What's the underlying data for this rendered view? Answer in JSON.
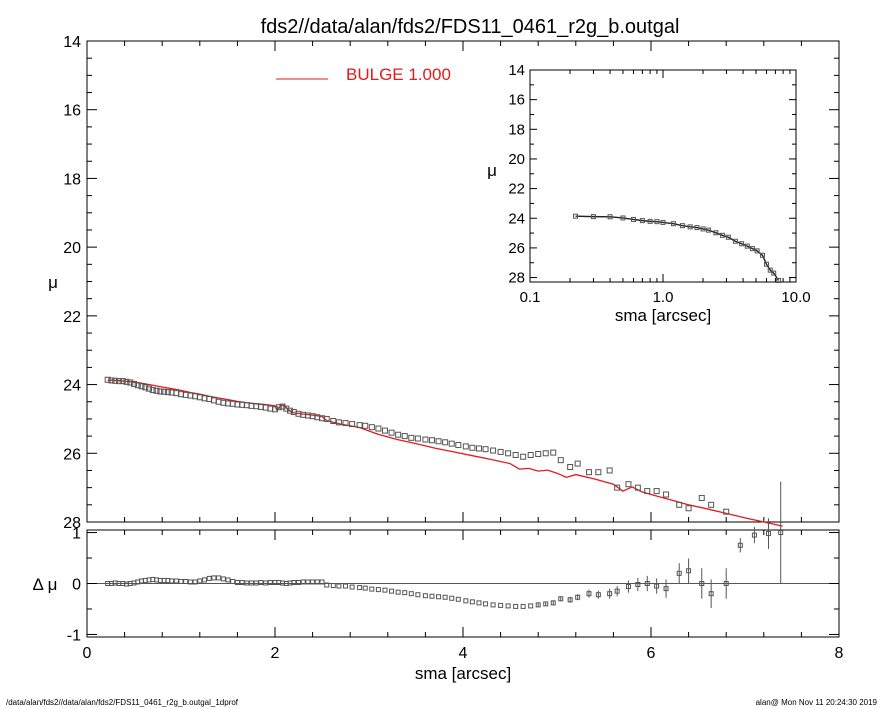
{
  "figure": {
    "title": "fds2//data/alan/fds2/FDS11_0461_r2g_b.outgal",
    "footer_left": "/data/alan/fds2//data/alan/fds2/FDS11_0461_r2g_b.outgal_1dprof",
    "footer_right": "alan@  Mon Nov 11 20:24:30 2019",
    "model_color": "#e41a1c",
    "data_color": "#555555"
  },
  "chart_data": [
    {
      "id": "main_profile",
      "type": "scatter",
      "title": "fds2//data/alan/fds2/FDS11_0461_r2g_b.outgal",
      "xlabel": "",
      "ylabel": "μ",
      "xlim": [
        0,
        8
      ],
      "ylim": [
        28,
        14
      ],
      "y_inverted": true,
      "yticks": [
        "14",
        "16",
        "18",
        "20",
        "22",
        "24",
        "26",
        "28"
      ],
      "legend": {
        "label": "BULGE  1.000",
        "placement": "top-center"
      },
      "series": [
        {
          "name": "data",
          "marker": "square",
          "x": [
            0.22,
            0.26,
            0.3,
            0.34,
            0.38,
            0.42,
            0.46,
            0.5,
            0.54,
            0.58,
            0.62,
            0.66,
            0.7,
            0.74,
            0.78,
            0.82,
            0.86,
            0.9,
            0.95,
            1.0,
            1.05,
            1.1,
            1.15,
            1.2,
            1.25,
            1.3,
            1.35,
            1.4,
            1.45,
            1.5,
            1.55,
            1.6,
            1.65,
            1.7,
            1.75,
            1.8,
            1.85,
            1.9,
            1.95,
            2.0,
            2.04,
            2.08,
            2.12,
            2.16,
            2.2,
            2.25,
            2.3,
            2.35,
            2.4,
            2.45,
            2.5,
            2.55,
            2.62,
            2.68,
            2.75,
            2.82,
            2.9,
            2.96,
            3.03,
            3.1,
            3.17,
            3.24,
            3.31,
            3.38,
            3.45,
            3.52,
            3.6,
            3.67,
            3.74,
            3.81,
            3.88,
            3.95,
            4.03,
            4.1,
            4.17,
            4.24,
            4.32,
            4.4,
            4.48,
            4.56,
            4.64,
            4.72,
            4.8,
            4.88,
            4.96,
            5.04,
            5.14,
            5.22,
            5.34,
            5.44,
            5.56,
            5.64,
            5.76,
            5.86,
            5.96,
            6.06,
            6.16,
            6.3,
            6.4,
            6.54,
            6.64,
            6.8
          ],
          "y": [
            23.86,
            23.88,
            23.89,
            23.9,
            23.9,
            23.92,
            23.94,
            23.98,
            24.02,
            24.05,
            24.08,
            24.12,
            24.16,
            24.18,
            24.2,
            24.21,
            24.22,
            24.23,
            24.25,
            24.28,
            24.3,
            24.32,
            24.34,
            24.37,
            24.4,
            24.42,
            24.46,
            24.5,
            24.53,
            24.55,
            24.56,
            24.58,
            24.59,
            24.6,
            24.62,
            24.63,
            24.65,
            24.67,
            24.7,
            24.72,
            24.66,
            24.64,
            24.7,
            24.76,
            24.8,
            24.85,
            24.88,
            24.9,
            24.92,
            24.95,
            24.98,
            25.0,
            25.06,
            25.1,
            25.12,
            25.15,
            25.18,
            25.2,
            25.24,
            25.28,
            25.34,
            25.4,
            25.46,
            25.5,
            25.55,
            25.57,
            25.6,
            25.62,
            25.65,
            25.68,
            25.72,
            25.76,
            25.8,
            25.84,
            25.86,
            25.88,
            25.92,
            25.96,
            26.0,
            26.05,
            26.1,
            26.05,
            26.02,
            26.0,
            25.98,
            26.2,
            26.4,
            26.3,
            26.55,
            26.55,
            26.5,
            27.0,
            26.9,
            27.0,
            27.1,
            27.1,
            27.2,
            27.5,
            27.6,
            27.3,
            27.5,
            27.7
          ]
        },
        {
          "name": "BULGE  1.000",
          "marker": "line",
          "x": [
            0.22,
            0.3,
            0.4,
            0.5,
            0.6,
            0.7,
            0.8,
            0.9,
            1.0,
            1.1,
            1.2,
            1.3,
            1.4,
            1.5,
            1.6,
            1.7,
            1.8,
            1.9,
            2.0,
            2.02,
            2.06,
            2.1,
            2.14,
            2.2,
            2.3,
            2.4,
            2.5,
            2.55,
            2.7,
            2.9,
            3.0,
            3.1,
            3.3,
            3.5,
            3.7,
            3.9,
            4.1,
            4.3,
            4.5,
            4.6,
            4.7,
            4.8,
            4.9,
            5.0,
            5.1,
            5.2,
            5.4,
            5.6,
            5.7,
            5.8,
            5.9,
            6.0,
            6.2,
            6.4,
            6.6,
            6.8,
            7.0,
            7.2,
            7.4
          ],
          "y": [
            23.87,
            23.88,
            23.9,
            23.93,
            23.97,
            24.02,
            24.07,
            24.12,
            24.17,
            24.23,
            24.28,
            24.34,
            24.39,
            24.44,
            24.49,
            24.53,
            24.56,
            24.58,
            24.62,
            24.74,
            24.62,
            24.6,
            24.74,
            24.82,
            24.86,
            24.89,
            24.93,
            25.05,
            25.15,
            25.25,
            25.35,
            25.45,
            25.6,
            25.72,
            25.85,
            25.96,
            26.07,
            26.18,
            26.3,
            26.46,
            26.44,
            26.52,
            26.49,
            26.58,
            26.7,
            26.62,
            26.75,
            26.9,
            27.1,
            26.98,
            27.12,
            27.2,
            27.35,
            27.5,
            27.62,
            27.75,
            27.88,
            28.0,
            28.12
          ]
        }
      ]
    },
    {
      "id": "residuals",
      "type": "scatter",
      "xlabel": "sma [arcsec]",
      "ylabel": "Δ μ",
      "xlim": [
        0,
        8
      ],
      "ylim": [
        -1.05,
        1.05
      ],
      "xticks": [
        "0",
        "2",
        "4",
        "6",
        "8"
      ],
      "yticks": [
        "1",
        "0",
        "-1"
      ],
      "zero_line": true,
      "series": [
        {
          "name": "residual",
          "marker": "square-with-errorbar",
          "x": [
            0.22,
            0.26,
            0.3,
            0.34,
            0.38,
            0.42,
            0.46,
            0.5,
            0.54,
            0.58,
            0.62,
            0.66,
            0.7,
            0.74,
            0.78,
            0.82,
            0.86,
            0.9,
            0.95,
            1.0,
            1.05,
            1.1,
            1.15,
            1.2,
            1.25,
            1.3,
            1.35,
            1.4,
            1.45,
            1.5,
            1.55,
            1.6,
            1.65,
            1.7,
            1.75,
            1.8,
            1.85,
            1.9,
            1.95,
            2.0,
            2.04,
            2.08,
            2.12,
            2.16,
            2.2,
            2.25,
            2.3,
            2.35,
            2.4,
            2.45,
            2.5,
            2.55,
            2.62,
            2.68,
            2.75,
            2.82,
            2.9,
            2.96,
            3.03,
            3.1,
            3.17,
            3.24,
            3.31,
            3.38,
            3.45,
            3.52,
            3.6,
            3.67,
            3.74,
            3.81,
            3.88,
            3.95,
            4.03,
            4.1,
            4.17,
            4.24,
            4.32,
            4.4,
            4.48,
            4.56,
            4.64,
            4.72,
            4.8,
            4.88,
            4.96,
            5.04,
            5.14,
            5.22,
            5.34,
            5.44,
            5.56,
            5.64,
            5.76,
            5.86,
            5.96,
            6.06,
            6.16,
            6.3,
            6.4,
            6.54,
            6.64,
            6.8,
            6.95,
            7.1,
            7.25,
            7.38
          ],
          "y": [
            0.0,
            0.0,
            0.01,
            0.0,
            0.0,
            -0.01,
            0.0,
            0.01,
            0.03,
            0.05,
            0.06,
            0.07,
            0.08,
            0.07,
            0.06,
            0.06,
            0.06,
            0.05,
            0.05,
            0.04,
            0.04,
            0.03,
            0.03,
            0.05,
            0.07,
            0.1,
            0.11,
            0.11,
            0.09,
            0.07,
            0.04,
            0.02,
            0.02,
            0.01,
            0.01,
            0.01,
            0.02,
            0.01,
            0.02,
            0.02,
            0.02,
            0.01,
            0.0,
            0.01,
            0.02,
            0.02,
            0.03,
            0.03,
            0.03,
            0.03,
            0.03,
            -0.03,
            -0.04,
            -0.05,
            -0.05,
            -0.07,
            -0.08,
            -0.09,
            -0.11,
            -0.12,
            -0.13,
            -0.15,
            -0.17,
            -0.18,
            -0.2,
            -0.22,
            -0.24,
            -0.25,
            -0.26,
            -0.27,
            -0.29,
            -0.31,
            -0.34,
            -0.36,
            -0.38,
            -0.4,
            -0.42,
            -0.43,
            -0.44,
            -0.45,
            -0.45,
            -0.44,
            -0.42,
            -0.4,
            -0.38,
            -0.3,
            -0.32,
            -0.27,
            -0.2,
            -0.22,
            -0.2,
            -0.15,
            -0.06,
            -0.02,
            0.0,
            -0.05,
            -0.1,
            0.2,
            0.25,
            0.0,
            -0.2,
            0.0,
            0.75,
            0.95,
            0.98,
            1.0
          ],
          "yerr": [
            0.01,
            0.01,
            0.01,
            0.01,
            0.01,
            0.01,
            0.01,
            0.01,
            0.01,
            0.01,
            0.01,
            0.01,
            0.01,
            0.01,
            0.01,
            0.01,
            0.01,
            0.01,
            0.01,
            0.01,
            0.01,
            0.01,
            0.01,
            0.01,
            0.01,
            0.01,
            0.01,
            0.01,
            0.01,
            0.01,
            0.01,
            0.01,
            0.01,
            0.01,
            0.01,
            0.01,
            0.01,
            0.01,
            0.01,
            0.01,
            0.01,
            0.01,
            0.01,
            0.01,
            0.01,
            0.01,
            0.01,
            0.01,
            0.01,
            0.01,
            0.01,
            0.01,
            0.01,
            0.01,
            0.01,
            0.01,
            0.01,
            0.01,
            0.01,
            0.01,
            0.01,
            0.01,
            0.01,
            0.01,
            0.01,
            0.01,
            0.01,
            0.02,
            0.02,
            0.02,
            0.02,
            0.02,
            0.02,
            0.02,
            0.02,
            0.02,
            0.03,
            0.03,
            0.03,
            0.03,
            0.03,
            0.03,
            0.04,
            0.04,
            0.05,
            0.05,
            0.06,
            0.06,
            0.08,
            0.08,
            0.1,
            0.1,
            0.12,
            0.13,
            0.15,
            0.15,
            0.18,
            0.2,
            0.24,
            0.3,
            0.28,
            0.3,
            0.14,
            0.16,
            0.3,
            1.0
          ]
        }
      ]
    },
    {
      "id": "inset_log",
      "type": "scatter",
      "xlabel": "sma [arcsec]",
      "ylabel": "μ",
      "xscale": "log",
      "xlim": [
        0.1,
        10
      ],
      "ylim": [
        28.3,
        14
      ],
      "y_inverted": true,
      "xticks": [
        "0.1",
        "1.0",
        "10.0"
      ],
      "yticks": [
        "14",
        "16",
        "18",
        "20",
        "22",
        "24",
        "26",
        "28"
      ],
      "series": [
        {
          "name": "data",
          "marker": "square-with-line",
          "x": [
            0.22,
            0.3,
            0.4,
            0.5,
            0.6,
            0.7,
            0.8,
            0.9,
            1.0,
            1.2,
            1.4,
            1.6,
            1.8,
            2.0,
            2.2,
            2.5,
            2.8,
            3.1,
            3.5,
            3.9,
            4.3,
            4.7,
            5.1,
            5.6,
            6.0,
            6.4,
            6.8,
            7.4
          ],
          "y": [
            23.86,
            23.89,
            23.9,
            23.98,
            24.08,
            24.16,
            24.21,
            24.23,
            24.28,
            24.37,
            24.5,
            24.58,
            24.63,
            24.72,
            24.8,
            24.98,
            25.15,
            25.28,
            25.55,
            25.72,
            25.88,
            26.05,
            26.2,
            26.5,
            27.1,
            27.5,
            27.7,
            28.2
          ]
        }
      ]
    }
  ]
}
